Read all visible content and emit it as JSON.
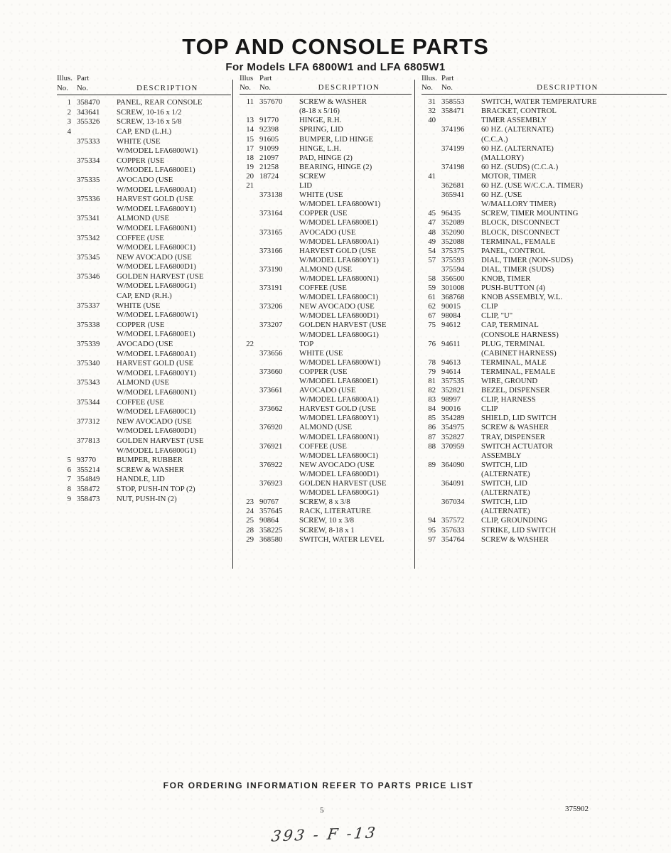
{
  "title": "TOP AND CONSOLE PARTS",
  "subtitle": "For Models LFA 6800W1 and LFA 6805W1",
  "footer": {
    "note": "FOR ORDERING INFORMATION REFER TO PARTS PRICE LIST",
    "page_number": "5",
    "doc_number": "375902",
    "handwritten": "393 - F -13"
  },
  "columns": [
    {
      "header": {
        "illus": "Illus.",
        "part": "Part",
        "no1": "No.",
        "no2": "No.",
        "description": "DESCRIPTION"
      },
      "entries": [
        {
          "n": "1",
          "p": "358470",
          "d": [
            "PANEL, REAR CONSOLE"
          ]
        },
        {
          "n": "2",
          "p": "343641",
          "d": [
            "SCREW, 10-16 x 1/2"
          ]
        },
        {
          "n": "3",
          "p": "355326",
          "d": [
            "SCREW, 13-16 x 5/8"
          ]
        },
        {
          "n": "4",
          "p": "",
          "d": [
            "CAP, END (L.H.)"
          ]
        },
        {
          "n": "",
          "p": "375333",
          "d": [
            "WHITE (USE",
            "W/MODEL LFA6800W1)"
          ]
        },
        {
          "n": "",
          "p": "375334",
          "d": [
            "COPPER (USE",
            "W/MODEL LFA6800E1)"
          ]
        },
        {
          "n": "",
          "p": "375335",
          "d": [
            "AVOCADO (USE",
            "W/MODEL LFA6800A1)"
          ]
        },
        {
          "n": "",
          "p": "375336",
          "d": [
            "HARVEST GOLD (USE",
            "W/MODEL LFA6800Y1)"
          ]
        },
        {
          "n": "",
          "p": "375341",
          "d": [
            "ALMOND (USE",
            "W/MODEL LFA6800N1)"
          ]
        },
        {
          "n": "",
          "p": "375342",
          "d": [
            "COFFEE (USE",
            "W/MODEL LFA6800C1)"
          ]
        },
        {
          "n": "",
          "p": "375345",
          "d": [
            "NEW AVOCADO (USE",
            "W/MODEL LFA6800D1)"
          ]
        },
        {
          "n": "",
          "p": "375346",
          "d": [
            "GOLDEN HARVEST (USE",
            "W/MODEL LFA6800G1)"
          ]
        },
        {
          "n": "",
          "p": "",
          "d": [
            "CAP, END (R.H.)"
          ]
        },
        {
          "n": "",
          "p": "375337",
          "d": [
            "WHITE (USE",
            "W/MODEL LFA6800W1)"
          ]
        },
        {
          "n": "",
          "p": "375338",
          "d": [
            "COPPER (USE",
            "W/MODEL LFA6800E1)"
          ]
        },
        {
          "n": "",
          "p": "375339",
          "d": [
            "AVOCADO (USE",
            "W/MODEL LFA6800A1)"
          ]
        },
        {
          "n": "",
          "p": "375340",
          "d": [
            "HARVEST GOLD (USE",
            "W/MODEL LFA6800Y1)"
          ]
        },
        {
          "n": "",
          "p": "375343",
          "d": [
            "ALMOND (USE",
            "W/MODEL LFA6800N1)"
          ]
        },
        {
          "n": "",
          "p": "375344",
          "d": [
            "COFFEE (USE",
            "W/MODEL LFA6800C1)"
          ]
        },
        {
          "n": "",
          "p": "377312",
          "d": [
            "NEW AVOCADO (USE",
            "W/MODEL LFA6800D1)"
          ]
        },
        {
          "n": "",
          "p": "377813",
          "d": [
            "GOLDEN HARVEST (USE",
            "W/MODEL LFA6800G1)"
          ]
        },
        {
          "n": "5",
          "p": "93770",
          "d": [
            "BUMPER, RUBBER"
          ]
        },
        {
          "n": "6",
          "p": "355214",
          "d": [
            "SCREW & WASHER"
          ]
        },
        {
          "n": "7",
          "p": "354849",
          "d": [
            "HANDLE, LID"
          ]
        },
        {
          "n": "8",
          "p": "358472",
          "d": [
            "STOP, PUSH-IN TOP (2)"
          ]
        },
        {
          "n": "9",
          "p": "358473",
          "d": [
            "NUT, PUSH-IN (2)"
          ]
        }
      ]
    },
    {
      "header": {
        "illus": "Illus",
        "part": "Part",
        "no1": "No.",
        "no2": "No.",
        "description": "DESCRIPTION"
      },
      "entries": [
        {
          "n": "11",
          "p": "357670",
          "d": [
            "SCREW & WASHER",
            "(8-18 x 5/16)"
          ]
        },
        {
          "n": "13",
          "p": "91770",
          "d": [
            "HINGE, R.H."
          ]
        },
        {
          "n": "14",
          "p": "92398",
          "d": [
            "SPRING, LID"
          ]
        },
        {
          "n": "15",
          "p": "91605",
          "d": [
            "BUMPER, LID HINGE"
          ]
        },
        {
          "n": "17",
          "p": "91099",
          "d": [
            "HINGE, L.H."
          ]
        },
        {
          "n": "18",
          "p": "21097",
          "d": [
            "PAD, HINGE (2)"
          ]
        },
        {
          "n": "19",
          "p": "21258",
          "d": [
            "BEARING, HINGE (2)"
          ]
        },
        {
          "n": "20",
          "p": "18724",
          "d": [
            "SCREW"
          ]
        },
        {
          "n": "21",
          "p": "",
          "d": [
            "LID"
          ]
        },
        {
          "n": "",
          "p": "373138",
          "d": [
            "WHITE (USE",
            "W/MODEL LFA6800W1)"
          ]
        },
        {
          "n": "",
          "p": "373164",
          "d": [
            "COPPER (USE",
            "W/MODEL LFA6800E1)"
          ]
        },
        {
          "n": "",
          "p": "373165",
          "d": [
            "AVOCADO (USE",
            "W/MODEL LFA6800A1)"
          ]
        },
        {
          "n": "",
          "p": "373166",
          "d": [
            "HARVEST GOLD (USE",
            "W/MODEL LFA6800Y1)"
          ]
        },
        {
          "n": "",
          "p": "373190",
          "d": [
            "ALMOND (USE",
            "W/MODEL LFA6800N1)"
          ]
        },
        {
          "n": "",
          "p": "373191",
          "d": [
            "COFFEE (USE",
            "W/MODEL LFA6800C1)"
          ]
        },
        {
          "n": "",
          "p": "373206",
          "d": [
            "NEW AVOCADO (USE",
            "W/MODEL LFA6800D1)"
          ]
        },
        {
          "n": "",
          "p": "373207",
          "d": [
            "GOLDEN HARVEST (USE",
            "W/MODEL LFA6800G1)"
          ]
        },
        {
          "n": "22",
          "p": "",
          "d": [
            "TOP"
          ]
        },
        {
          "n": "",
          "p": "373656",
          "d": [
            "WHITE (USE",
            "W/MODEL LFA6800W1)"
          ]
        },
        {
          "n": "",
          "p": "373660",
          "d": [
            "COPPER (USE",
            "W/MODEL LFA6800E1)"
          ]
        },
        {
          "n": "",
          "p": "373661",
          "d": [
            "AVOCADO (USE",
            "W/MODEL LFA6800A1)"
          ]
        },
        {
          "n": "",
          "p": "373662",
          "d": [
            "HARVEST GOLD (USE",
            "W/MODEL LFA6800Y1)"
          ]
        },
        {
          "n": "",
          "p": "376920",
          "d": [
            "ALMOND (USE",
            "W/MODEL LFA6800N1)"
          ]
        },
        {
          "n": "",
          "p": "376921",
          "d": [
            "COFFEE (USE",
            "W/MODEL LFA6800C1)"
          ]
        },
        {
          "n": "",
          "p": "376922",
          "d": [
            "NEW AVOCADO (USE",
            "W/MODEL LFA6800D1)"
          ]
        },
        {
          "n": "",
          "p": "376923",
          "d": [
            "GOLDEN HARVEST (USE",
            "W/MODEL LFA6800G1)"
          ]
        },
        {
          "n": "23",
          "p": "90767",
          "d": [
            "SCREW, 8 x 3/8"
          ]
        },
        {
          "n": "24",
          "p": "357645",
          "d": [
            "RACK, LITERATURE"
          ]
        },
        {
          "n": "25",
          "p": "90864",
          "d": [
            "SCREW, 10 x 3/8"
          ]
        },
        {
          "n": "28",
          "p": "358225",
          "d": [
            "SCREW, 8-18 x 1"
          ]
        },
        {
          "n": "29",
          "p": "368580",
          "d": [
            "SWITCH, WATER LEVEL"
          ]
        }
      ]
    },
    {
      "header": {
        "illus": "Illus.",
        "part": "Part",
        "no1": "No.",
        "no2": "No.",
        "description": "DESCRIPTION"
      },
      "entries": [
        {
          "n": "31",
          "p": "358553",
          "d": [
            "SWITCH, WATER TEMPERATURE"
          ]
        },
        {
          "n": "32",
          "p": "358471",
          "d": [
            "BRACKET, CONTROL"
          ]
        },
        {
          "n": "40",
          "p": "",
          "d": [
            "TIMER ASSEMBLY"
          ]
        },
        {
          "n": "",
          "p": "374196",
          "d": [
            "60 HZ. (ALTERNATE)",
            "(C.C.A.)"
          ]
        },
        {
          "n": "",
          "p": "374199",
          "d": [
            "60 HZ. (ALTERNATE)",
            "(MALLORY)"
          ]
        },
        {
          "n": "",
          "p": "374198",
          "d": [
            "60 HZ. (SUDS) (C.C.A.)"
          ]
        },
        {
          "n": "41",
          "p": "",
          "d": [
            "MOTOR, TIMER"
          ]
        },
        {
          "n": "",
          "p": "362681",
          "d": [
            "60 HZ. (USE W/C.C.A. TIMER)"
          ]
        },
        {
          "n": "",
          "p": "365941",
          "d": [
            "60 HZ. (USE",
            "W/MALLORY TIMER)"
          ]
        },
        {
          "n": "45",
          "p": "96435",
          "d": [
            "SCREW, TIMER MOUNTING"
          ]
        },
        {
          "n": "47",
          "p": "352089",
          "d": [
            "BLOCK, DISCONNECT"
          ]
        },
        {
          "n": "48",
          "p": "352090",
          "d": [
            "BLOCK, DISCONNECT"
          ]
        },
        {
          "n": "49",
          "p": "352088",
          "d": [
            "TERMINAL, FEMALE"
          ]
        },
        {
          "n": "54",
          "p": "375375",
          "d": [
            "PANEL, CONTROL"
          ]
        },
        {
          "n": "57",
          "p": "375593",
          "d": [
            "DIAL, TIMER (NON-SUDS)"
          ]
        },
        {
          "n": "",
          "p": "375594",
          "d": [
            "DIAL, TIMER (SUDS)"
          ]
        },
        {
          "n": "58",
          "p": "356500",
          "d": [
            "KNOB, TIMER"
          ]
        },
        {
          "n": "59",
          "p": "301008",
          "d": [
            "PUSH-BUTTON (4)"
          ]
        },
        {
          "n": "61",
          "p": "368768",
          "d": [
            "KNOB ASSEMBLY, W.L."
          ]
        },
        {
          "n": "62",
          "p": "90015",
          "d": [
            "CLIP"
          ]
        },
        {
          "n": "67",
          "p": "98084",
          "d": [
            "CLIP, \"U\""
          ]
        },
        {
          "n": "75",
          "p": "94612",
          "d": [
            "CAP, TERMINAL",
            "(CONSOLE HARNESS)"
          ]
        },
        {
          "n": "76",
          "p": "94611",
          "d": [
            "PLUG, TERMINAL",
            "(CABINET HARNESS)"
          ]
        },
        {
          "n": "78",
          "p": "94613",
          "d": [
            "TERMINAL, MALE"
          ]
        },
        {
          "n": "79",
          "p": "94614",
          "d": [
            "TERMINAL, FEMALE"
          ]
        },
        {
          "n": "81",
          "p": "357535",
          "d": [
            "WIRE, GROUND"
          ]
        },
        {
          "n": "82",
          "p": "352821",
          "d": [
            "BEZEL, DISPENSER"
          ]
        },
        {
          "n": "83",
          "p": "98997",
          "d": [
            "CLIP, HARNESS"
          ]
        },
        {
          "n": "84",
          "p": "90016",
          "d": [
            "CLIP"
          ]
        },
        {
          "n": "85",
          "p": "354289",
          "d": [
            "SHIELD, LID SWITCH"
          ]
        },
        {
          "n": "86",
          "p": "354975",
          "d": [
            "SCREW & WASHER"
          ]
        },
        {
          "n": "87",
          "p": "352827",
          "d": [
            "TRAY, DISPENSER"
          ]
        },
        {
          "n": "88",
          "p": "370959",
          "d": [
            "SWITCH ACTUATOR",
            "ASSEMBLY"
          ]
        },
        {
          "n": "89",
          "p": "364090",
          "d": [
            "SWITCH, LID",
            "(ALTERNATE)"
          ]
        },
        {
          "n": "",
          "p": "364091",
          "d": [
            "SWITCH, LID",
            "(ALTERNATE)"
          ]
        },
        {
          "n": "",
          "p": "367034",
          "d": [
            "SWITCH, LID",
            "(ALTERNATE)"
          ]
        },
        {
          "n": "94",
          "p": "357572",
          "d": [
            "CLIP, GROUNDING"
          ]
        },
        {
          "n": "95",
          "p": "357633",
          "d": [
            "STRIKE, LID SWITCH"
          ]
        },
        {
          "n": "97",
          "p": "354764",
          "d": [
            "SCREW & WASHER"
          ]
        }
      ]
    }
  ]
}
